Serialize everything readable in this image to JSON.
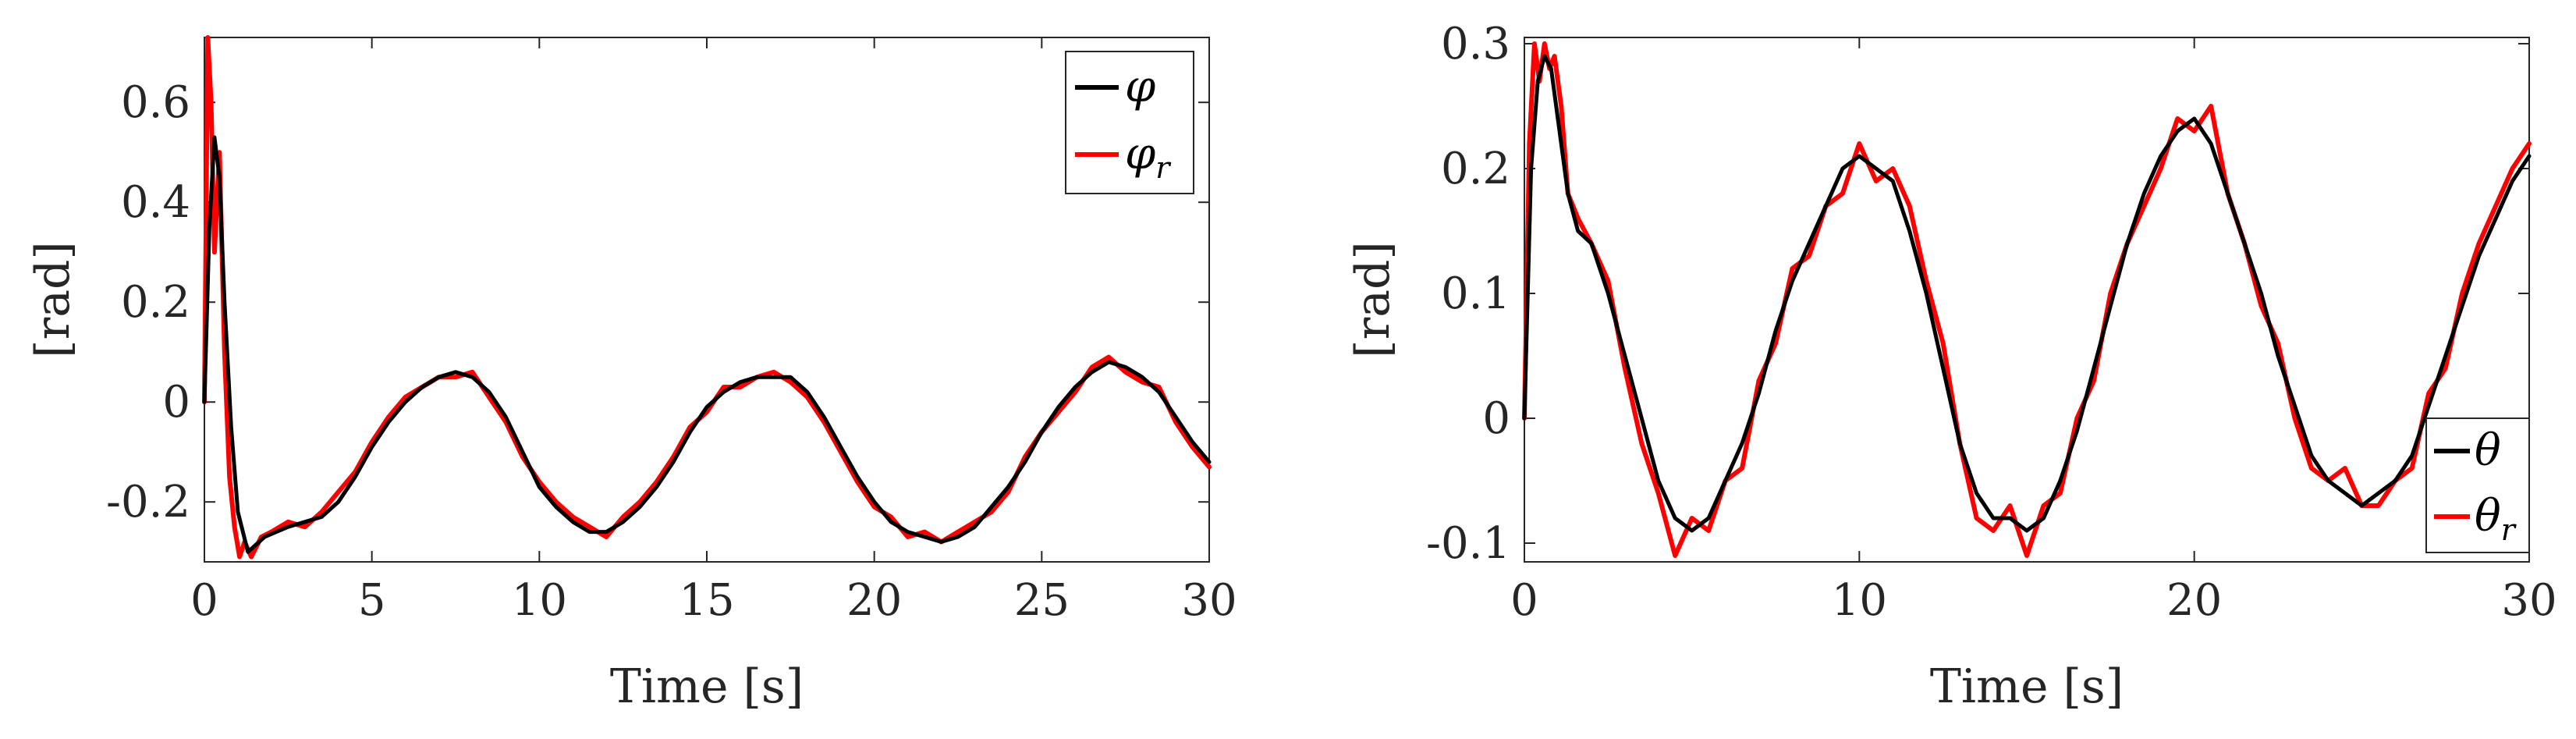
{
  "chart_data": [
    {
      "type": "line",
      "title": "",
      "xlabel": "Time [s]",
      "ylabel": "[rad]",
      "xlim": [
        0,
        30
      ],
      "ylim": [
        -0.32,
        0.73
      ],
      "xticks": [
        0,
        5,
        10,
        15,
        20,
        25,
        30
      ],
      "xtick_labels": [
        "0",
        "5",
        "10",
        "15",
        "20",
        "25",
        "30"
      ],
      "yticks": [
        -0.2,
        0,
        0.2,
        0.4,
        0.6
      ],
      "ytick_labels": [
        "-0.2",
        "0",
        "0.2",
        "0.4",
        "0.6"
      ],
      "grid": false,
      "legend_position": "top-right",
      "series": [
        {
          "name": "φ",
          "legend_main": "φ",
          "legend_sub": "",
          "color": "#000000",
          "x": [
            0,
            0.15,
            0.3,
            0.45,
            0.6,
            0.8,
            1.0,
            1.3,
            1.8,
            2.5,
            3.0,
            3.5,
            4.0,
            4.5,
            5.0,
            5.5,
            6.0,
            6.5,
            7.0,
            7.5,
            8.0,
            8.5,
            9.0,
            9.5,
            10.0,
            10.5,
            11.0,
            11.5,
            12.0,
            12.5,
            13.0,
            13.5,
            14.0,
            14.5,
            15.0,
            15.5,
            16.0,
            16.5,
            17.0,
            17.5,
            18.0,
            18.5,
            19.0,
            19.5,
            20.0,
            20.5,
            21.0,
            21.5,
            22.0,
            22.5,
            23.0,
            23.5,
            24.0,
            24.5,
            25.0,
            25.5,
            26.0,
            26.5,
            27.0,
            27.5,
            28.0,
            28.5,
            29.0,
            29.5,
            30.0
          ],
          "y": [
            0.0,
            0.35,
            0.53,
            0.45,
            0.2,
            -0.05,
            -0.22,
            -0.3,
            -0.27,
            -0.25,
            -0.24,
            -0.23,
            -0.2,
            -0.15,
            -0.09,
            -0.04,
            0.0,
            0.03,
            0.05,
            0.06,
            0.05,
            0.02,
            -0.03,
            -0.1,
            -0.17,
            -0.21,
            -0.24,
            -0.26,
            -0.26,
            -0.24,
            -0.21,
            -0.17,
            -0.12,
            -0.06,
            -0.01,
            0.02,
            0.04,
            0.05,
            0.05,
            0.05,
            0.02,
            -0.03,
            -0.09,
            -0.15,
            -0.2,
            -0.24,
            -0.26,
            -0.27,
            -0.28,
            -0.27,
            -0.25,
            -0.21,
            -0.17,
            -0.12,
            -0.06,
            -0.01,
            0.03,
            0.06,
            0.08,
            0.07,
            0.05,
            0.02,
            -0.03,
            -0.08,
            -0.12
          ]
        },
        {
          "name": "φr",
          "legend_main": "φ",
          "legend_sub": "r",
          "color": "#ff0000",
          "x": [
            0,
            0.1,
            0.2,
            0.3,
            0.45,
            0.6,
            0.75,
            0.9,
            1.05,
            1.2,
            1.4,
            1.7,
            2.0,
            2.5,
            3.0,
            3.5,
            4.0,
            4.5,
            5.0,
            5.5,
            6.0,
            6.5,
            7.0,
            7.5,
            8.0,
            8.5,
            9.0,
            9.5,
            10.0,
            10.5,
            11.0,
            11.5,
            12.0,
            12.5,
            13.0,
            13.5,
            14.0,
            14.5,
            15.0,
            15.5,
            16.0,
            16.5,
            17.0,
            17.5,
            18.0,
            18.5,
            19.0,
            19.5,
            20.0,
            20.5,
            21.0,
            21.5,
            22.0,
            22.5,
            23.0,
            23.5,
            24.0,
            24.5,
            25.0,
            25.5,
            26.0,
            26.5,
            27.0,
            27.5,
            28.0,
            28.5,
            29.0,
            29.5,
            30.0
          ],
          "y": [
            0.0,
            0.73,
            0.6,
            0.3,
            0.5,
            0.1,
            -0.15,
            -0.25,
            -0.31,
            -0.28,
            -0.31,
            -0.27,
            -0.26,
            -0.24,
            -0.25,
            -0.22,
            -0.18,
            -0.14,
            -0.08,
            -0.03,
            0.01,
            0.03,
            0.05,
            0.05,
            0.06,
            0.01,
            -0.04,
            -0.11,
            -0.16,
            -0.2,
            -0.23,
            -0.25,
            -0.27,
            -0.23,
            -0.2,
            -0.16,
            -0.11,
            -0.05,
            -0.02,
            0.03,
            0.03,
            0.05,
            0.06,
            0.04,
            0.01,
            -0.04,
            -0.1,
            -0.16,
            -0.21,
            -0.23,
            -0.27,
            -0.26,
            -0.28,
            -0.26,
            -0.24,
            -0.22,
            -0.18,
            -0.11,
            -0.06,
            -0.02,
            0.02,
            0.07,
            0.09,
            0.06,
            0.04,
            0.03,
            -0.04,
            -0.09,
            -0.13
          ]
        }
      ]
    },
    {
      "type": "line",
      "title": "",
      "xlabel": "Time [s]",
      "ylabel": "[rad]",
      "xlim": [
        0,
        30
      ],
      "ylim": [
        -0.115,
        0.305
      ],
      "xticks": [
        0,
        10,
        20,
        30
      ],
      "xtick_labels": [
        "0",
        "10",
        "20",
        "30"
      ],
      "yticks": [
        -0.1,
        0,
        0.1,
        0.2,
        0.3
      ],
      "ytick_labels": [
        "-0.1",
        "0",
        "0.1",
        "0.2",
        "0.3"
      ],
      "grid": false,
      "legend_position": "bottom-right",
      "series": [
        {
          "name": "θ",
          "legend_main": "θ",
          "legend_sub": "",
          "color": "#000000",
          "x": [
            0,
            0.2,
            0.4,
            0.6,
            0.8,
            1.0,
            1.3,
            1.6,
            2.0,
            2.5,
            3.0,
            3.5,
            4.0,
            4.5,
            5.0,
            5.5,
            6.0,
            6.5,
            7.0,
            7.5,
            8.0,
            8.5,
            9.0,
            9.5,
            10.0,
            10.5,
            11.0,
            11.5,
            12.0,
            12.5,
            13.0,
            13.5,
            14.0,
            14.5,
            15.0,
            15.5,
            16.0,
            16.5,
            17.0,
            17.5,
            18.0,
            18.5,
            19.0,
            19.5,
            20.0,
            20.5,
            21.0,
            21.5,
            22.0,
            22.5,
            23.0,
            23.5,
            24.0,
            24.5,
            25.0,
            25.5,
            26.0,
            26.5,
            27.0,
            27.5,
            28.0,
            28.5,
            29.0,
            29.5,
            30.0
          ],
          "y": [
            0.0,
            0.2,
            0.27,
            0.29,
            0.28,
            0.24,
            0.18,
            0.15,
            0.14,
            0.1,
            0.05,
            0.0,
            -0.05,
            -0.08,
            -0.09,
            -0.08,
            -0.05,
            -0.02,
            0.02,
            0.07,
            0.11,
            0.14,
            0.17,
            0.2,
            0.21,
            0.2,
            0.19,
            0.15,
            0.1,
            0.04,
            -0.02,
            -0.06,
            -0.08,
            -0.08,
            -0.09,
            -0.08,
            -0.05,
            -0.01,
            0.04,
            0.09,
            0.14,
            0.18,
            0.21,
            0.23,
            0.24,
            0.22,
            0.18,
            0.14,
            0.1,
            0.05,
            0.01,
            -0.03,
            -0.05,
            -0.06,
            -0.07,
            -0.06,
            -0.05,
            -0.03,
            0.01,
            0.05,
            0.09,
            0.13,
            0.16,
            0.19,
            0.21
          ]
        },
        {
          "name": "θr",
          "legend_main": "θ",
          "legend_sub": "r",
          "color": "#ff0000",
          "x": [
            0,
            0.15,
            0.3,
            0.45,
            0.6,
            0.75,
            0.9,
            1.1,
            1.3,
            1.6,
            2.0,
            2.5,
            3.0,
            3.5,
            4.0,
            4.5,
            5.0,
            5.5,
            6.0,
            6.5,
            7.0,
            7.5,
            8.0,
            8.5,
            9.0,
            9.5,
            10.0,
            10.5,
            11.0,
            11.5,
            12.0,
            12.5,
            13.0,
            13.5,
            14.0,
            14.5,
            15.0,
            15.5,
            16.0,
            16.5,
            17.0,
            17.5,
            18.0,
            18.5,
            19.0,
            19.5,
            20.0,
            20.5,
            21.0,
            21.5,
            22.0,
            22.5,
            23.0,
            23.5,
            24.0,
            24.5,
            25.0,
            25.5,
            26.0,
            26.5,
            27.0,
            27.5,
            28.0,
            28.5,
            29.0,
            29.5,
            30.0
          ],
          "y": [
            0.0,
            0.22,
            0.3,
            0.27,
            0.3,
            0.28,
            0.29,
            0.25,
            0.18,
            0.16,
            0.14,
            0.11,
            0.04,
            -0.02,
            -0.06,
            -0.11,
            -0.08,
            -0.09,
            -0.05,
            -0.04,
            0.03,
            0.06,
            0.12,
            0.13,
            0.17,
            0.18,
            0.22,
            0.19,
            0.2,
            0.17,
            0.11,
            0.06,
            -0.02,
            -0.08,
            -0.09,
            -0.07,
            -0.11,
            -0.07,
            -0.06,
            0.0,
            0.03,
            0.1,
            0.14,
            0.17,
            0.2,
            0.24,
            0.23,
            0.25,
            0.18,
            0.14,
            0.09,
            0.06,
            0.0,
            -0.04,
            -0.05,
            -0.04,
            -0.07,
            -0.07,
            -0.05,
            -0.04,
            0.02,
            0.04,
            0.1,
            0.14,
            0.17,
            0.2,
            0.22
          ]
        }
      ]
    }
  ]
}
